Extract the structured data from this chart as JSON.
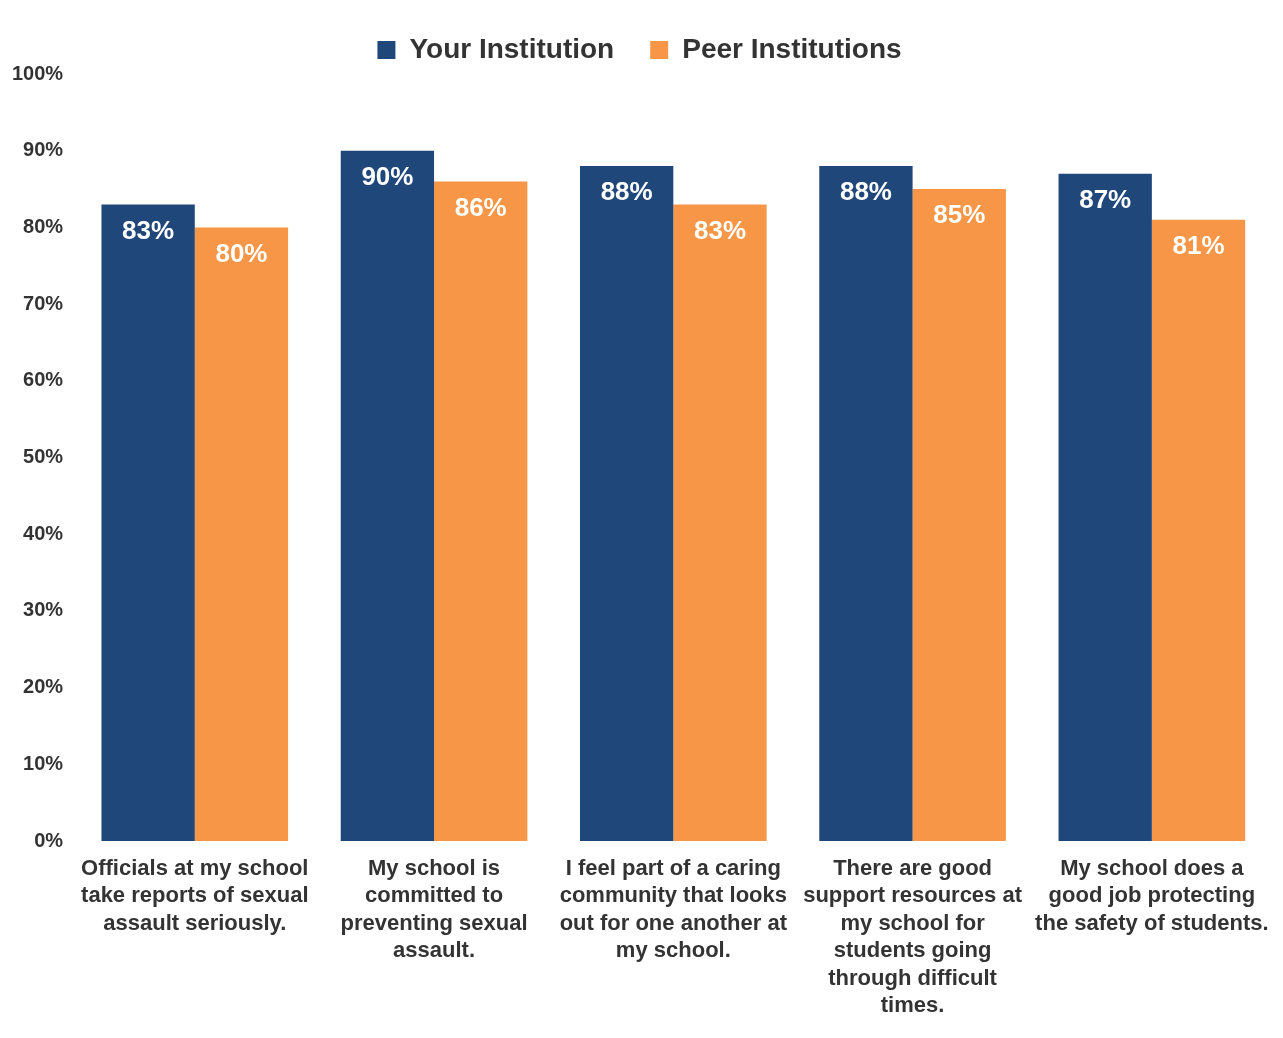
{
  "chart_data": {
    "type": "bar",
    "categories": [
      "Officials at my school take reports of sexual assault seriously.",
      "My school is committed to preventing sexual assault.",
      "I feel part of a caring community that looks out for one another at my school.",
      "There are good support resources at my school for students going through difficult times.",
      "My school does a good job protecting the safety of students."
    ],
    "series": [
      {
        "name": "Your Institution",
        "color": "#20477a",
        "values": [
          83,
          90,
          88,
          88,
          87
        ],
        "value_labels": [
          "83%",
          "90%",
          "88%",
          "88%",
          "87%"
        ]
      },
      {
        "name": "Peer Institutions",
        "color": "#f79646",
        "values": [
          80,
          86,
          83,
          85,
          81
        ],
        "value_labels": [
          "80%",
          "86%",
          "83%",
          "85%",
          "81%"
        ]
      }
    ],
    "ylim": [
      0,
      100
    ],
    "yticks": [
      {
        "value": 0,
        "label": "0%"
      },
      {
        "value": 10,
        "label": "10%"
      },
      {
        "value": 20,
        "label": "20%"
      },
      {
        "value": 30,
        "label": "30%"
      },
      {
        "value": 40,
        "label": "40%"
      },
      {
        "value": 50,
        "label": "50%"
      },
      {
        "value": 60,
        "label": "60%"
      },
      {
        "value": 70,
        "label": "70%"
      },
      {
        "value": 80,
        "label": "80%"
      },
      {
        "value": 90,
        "label": "90%"
      },
      {
        "value": 100,
        "label": "100%"
      }
    ],
    "grid": false,
    "legend": "top"
  }
}
